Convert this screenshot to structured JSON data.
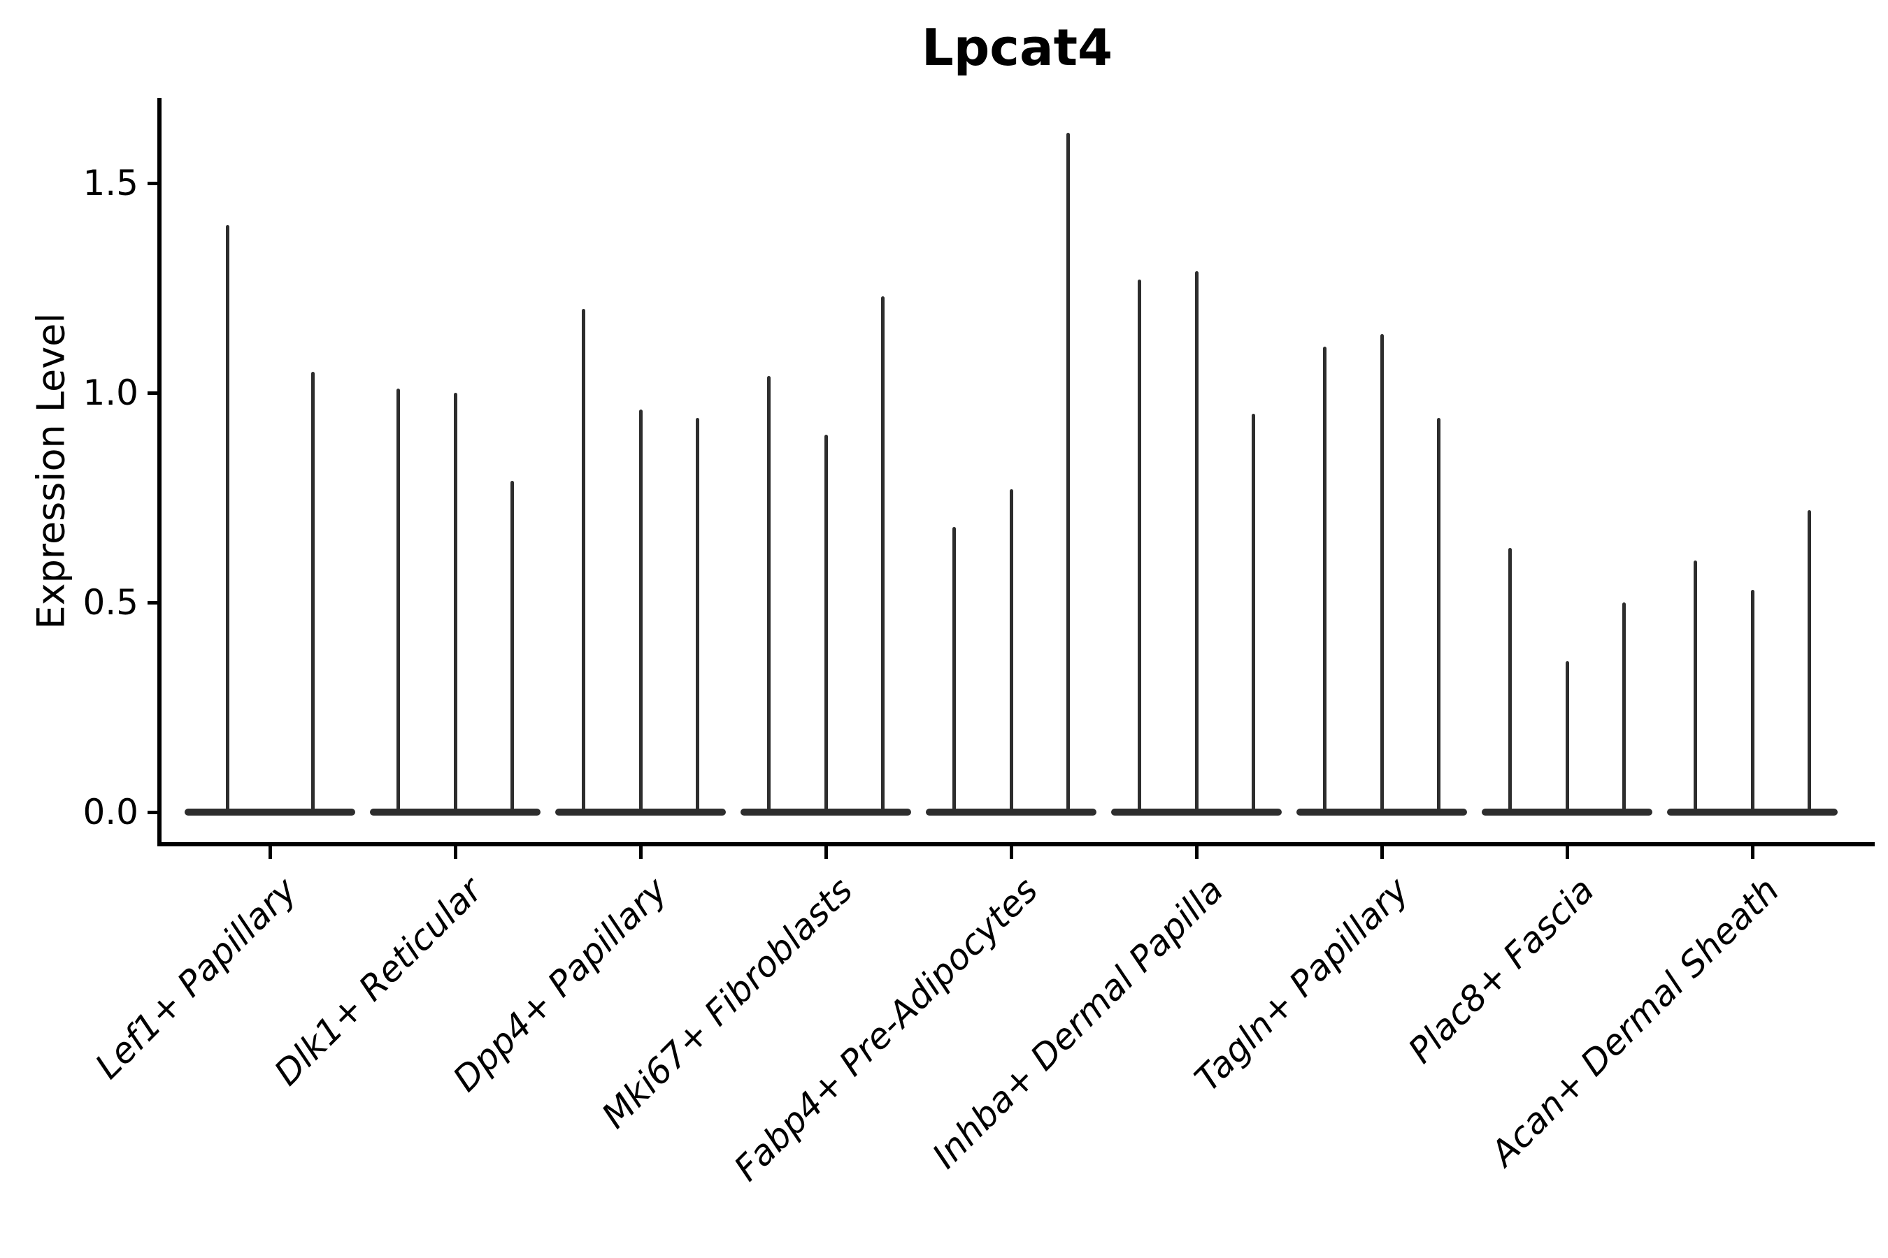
{
  "chart_data": {
    "type": "violin",
    "title": "Lpcat4",
    "ylabel": "Expression Level",
    "xlabel": "",
    "grid": false,
    "legend": false,
    "background_color": "#ffffff",
    "violin_color": "#2d2d2d",
    "axis_color": "#000000",
    "yticks": [
      0.0,
      0.5,
      1.0,
      1.5
    ],
    "ytick_labels": [
      "0.0",
      "0.5",
      "1.0",
      "1.5"
    ],
    "ylim": [
      -0.08,
      1.7
    ],
    "categories": [
      "Lef1+ Papillary",
      "Dlk1+ Reticular",
      "Dpp4+ Papillary",
      "Mki67+ Fibroblasts",
      "Fabp4+ Pre-Adipocytes",
      "Inhba+ Dermal Papilla",
      "Tagln+ Papillary",
      "Plac8+ Fascia",
      "Acan+ Dermal Sheath"
    ],
    "groups": [
      {
        "label": "Lef1+ Papillary",
        "violin_max": [
          1.4,
          1.05
        ]
      },
      {
        "label": "Dlk1+ Reticular",
        "violin_max": [
          1.01,
          1.0,
          0.79
        ]
      },
      {
        "label": "Dpp4+ Papillary",
        "violin_max": [
          1.2,
          0.96,
          0.94
        ]
      },
      {
        "label": "Mki67+ Fibroblasts",
        "violin_max": [
          1.04,
          0.9,
          1.23
        ]
      },
      {
        "label": "Fabp4+ Pre-Adipocytes",
        "violin_max": [
          0.68,
          0.77,
          1.62
        ]
      },
      {
        "label": "Inhba+ Dermal Papilla",
        "violin_max": [
          1.27,
          1.29,
          0.95
        ]
      },
      {
        "label": "Tagln+ Papillary",
        "violin_max": [
          1.11,
          1.14,
          0.94
        ]
      },
      {
        "label": "Plac8+ Fascia",
        "violin_max": [
          0.63,
          0.36,
          0.5
        ]
      },
      {
        "label": "Acan+ Dermal Sheath",
        "violin_max": [
          0.6,
          0.53,
          0.72
        ]
      }
    ],
    "violin_min": 0.0,
    "note": "Needle-shaped violins: wide flat base at expression 0 with a thin tail up to the max expression value per violin."
  }
}
